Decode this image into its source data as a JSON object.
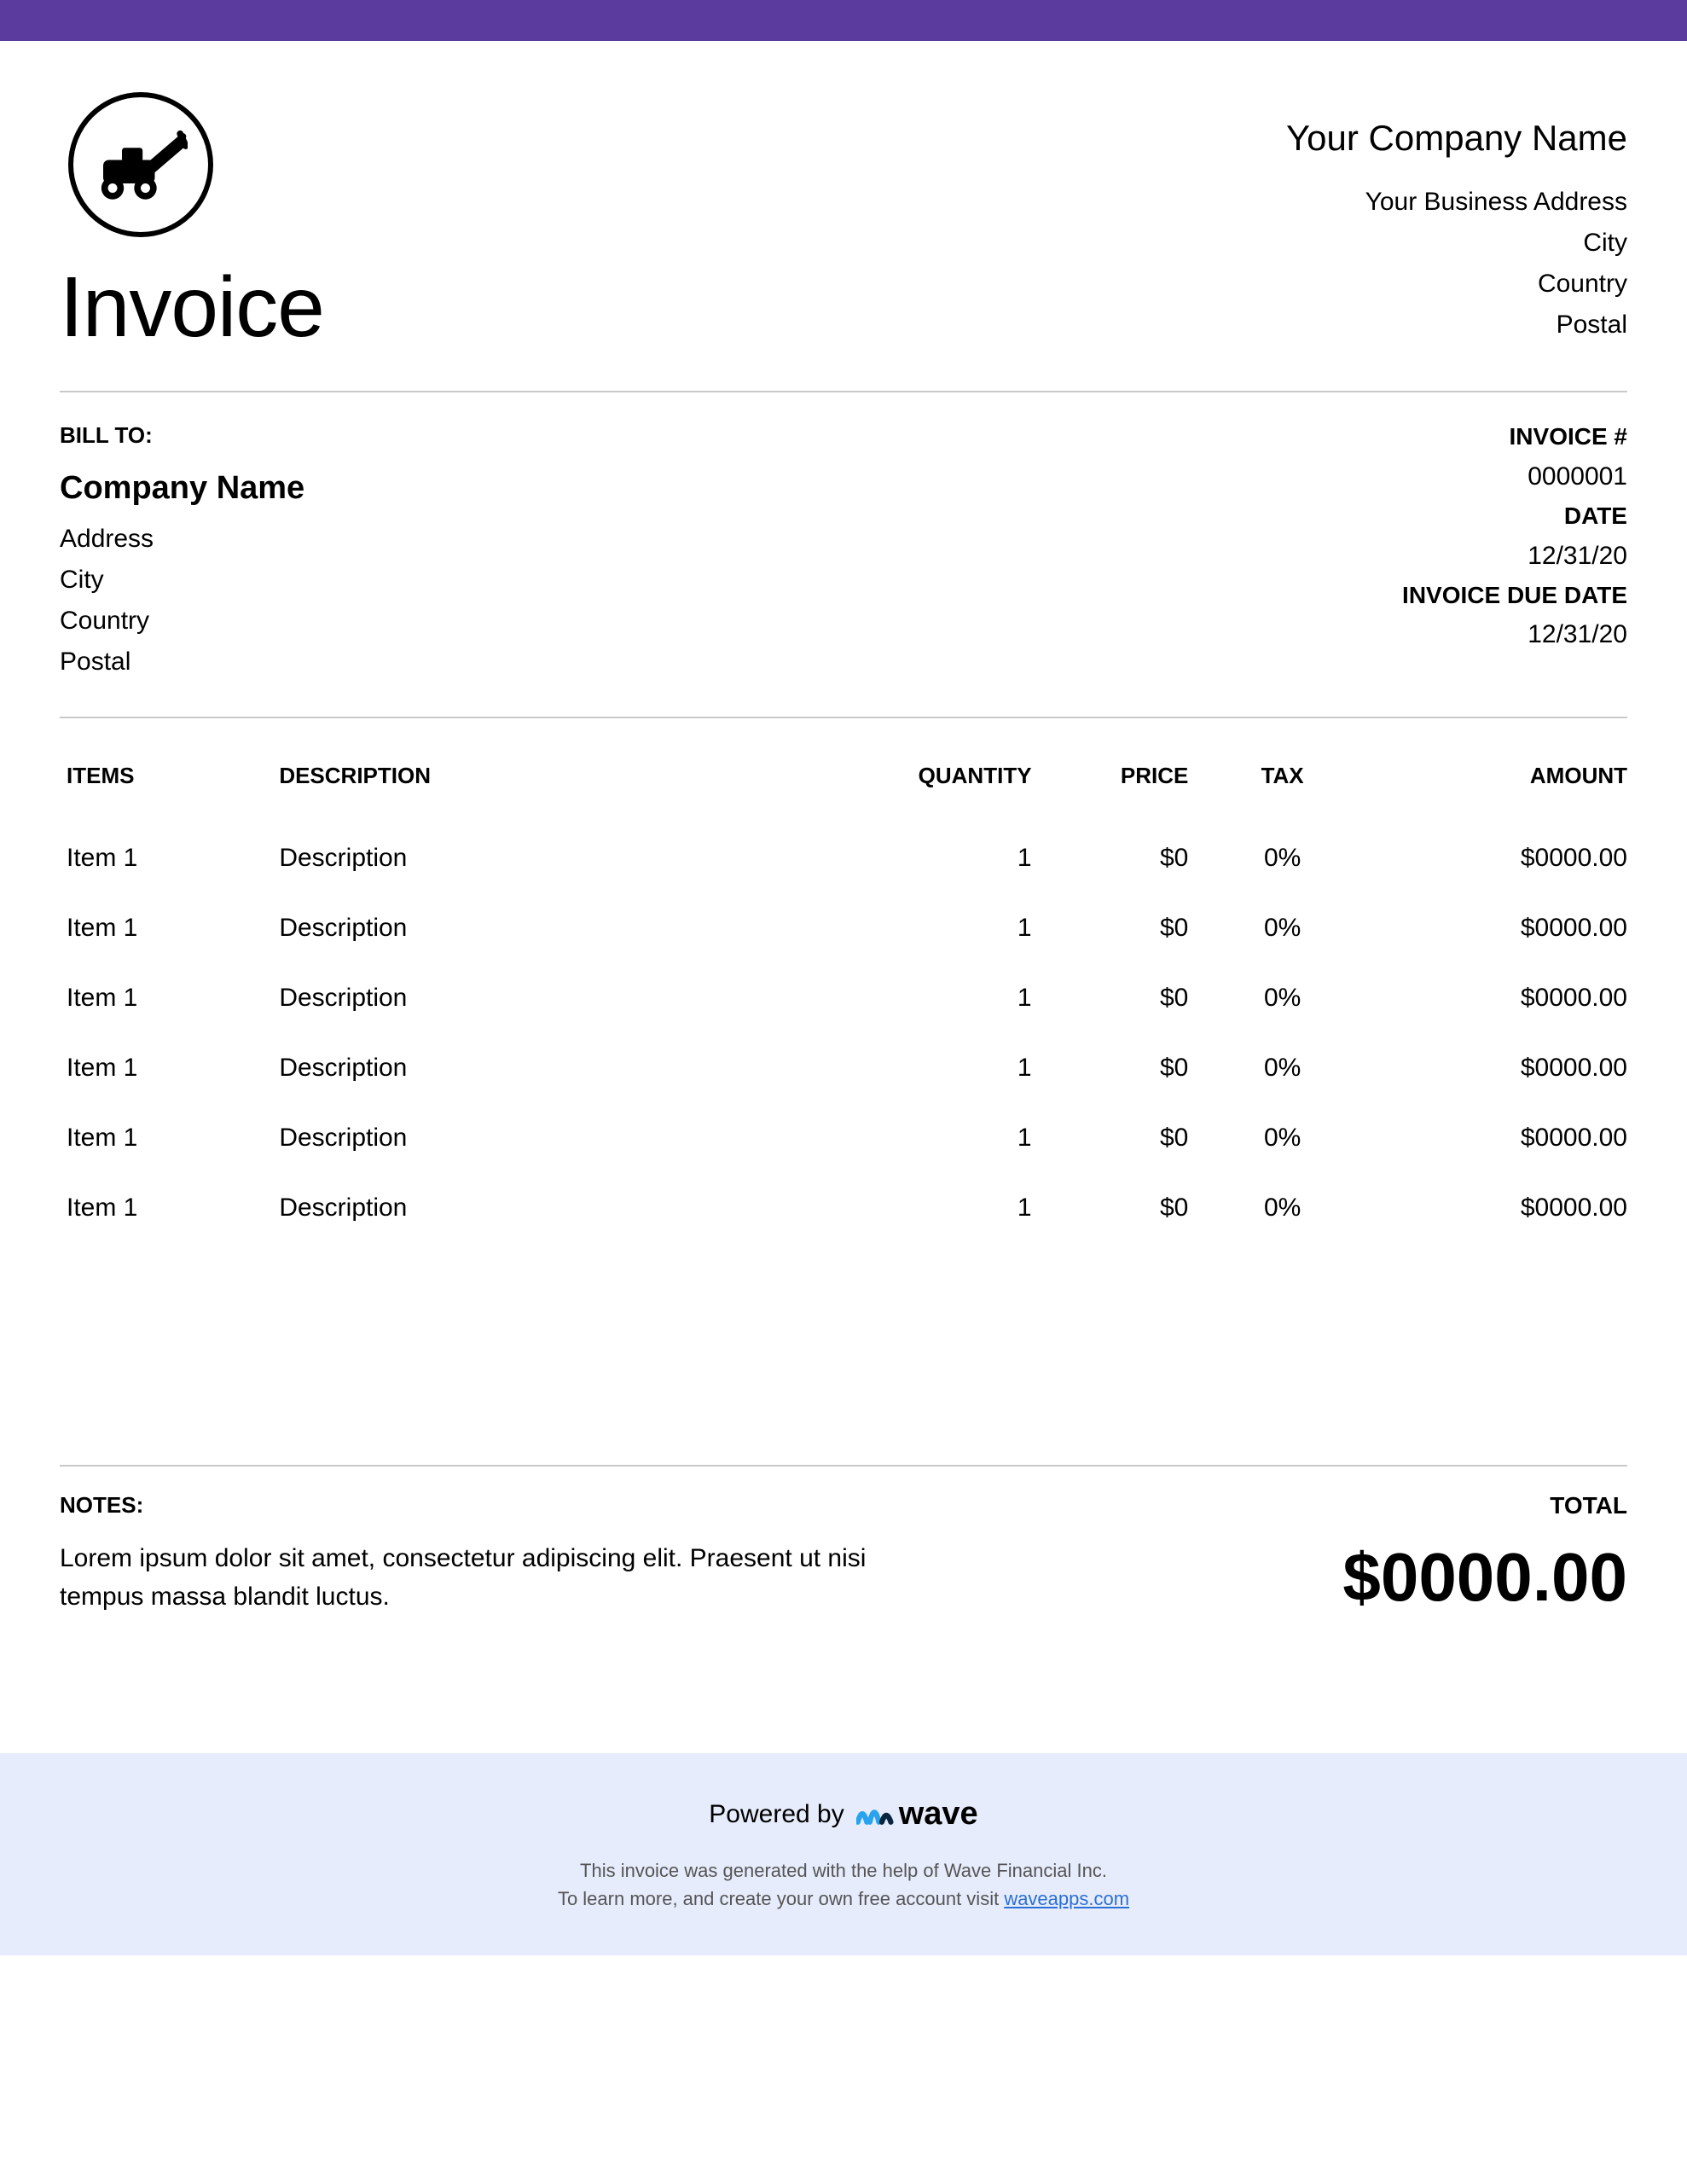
{
  "theme": {
    "top_bar_color": "#5b3b9e",
    "footer_bg": "#e6ecfb",
    "divider_color": "#c9c9c9",
    "link_color": "#2a6fd6"
  },
  "document": {
    "title": "Invoice"
  },
  "company": {
    "name": "Your Company Name",
    "address": "Your Business Address",
    "city": "City",
    "country": "Country",
    "postal": "Postal"
  },
  "bill_to": {
    "label": "BILL TO:",
    "name": "Company Name",
    "address": "Address",
    "city": "City",
    "country": "Country",
    "postal": "Postal"
  },
  "meta": {
    "invoice_number_label": "INVOICE #",
    "invoice_number": "0000001",
    "date_label": "DATE",
    "date": "12/31/20",
    "due_date_label": "INVOICE DUE DATE",
    "due_date": "12/31/20"
  },
  "columns": {
    "items": "ITEMS",
    "description": "DESCRIPTION",
    "quantity": "QUANTITY",
    "price": "PRICE",
    "tax": "TAX",
    "amount": "AMOUNT"
  },
  "rows": [
    {
      "item": "Item 1",
      "description": "Description",
      "quantity": "1",
      "price": "$0",
      "tax": "0%",
      "amount": "$0000.00"
    },
    {
      "item": "Item 1",
      "description": "Description",
      "quantity": "1",
      "price": "$0",
      "tax": "0%",
      "amount": "$0000.00"
    },
    {
      "item": "Item 1",
      "description": "Description",
      "quantity": "1",
      "price": "$0",
      "tax": "0%",
      "amount": "$0000.00"
    },
    {
      "item": "Item 1",
      "description": "Description",
      "quantity": "1",
      "price": "$0",
      "tax": "0%",
      "amount": "$0000.00"
    },
    {
      "item": "Item 1",
      "description": "Description",
      "quantity": "1",
      "price": "$0",
      "tax": "0%",
      "amount": "$0000.00"
    },
    {
      "item": "Item 1",
      "description": "Description",
      "quantity": "1",
      "price": "$0",
      "tax": "0%",
      "amount": "$0000.00"
    }
  ],
  "notes": {
    "label": "NOTES:",
    "body": "Lorem ipsum dolor sit amet, consectetur adipiscing elit. Praesent ut nisi tempus massa blandit luctus."
  },
  "totals": {
    "label": "TOTAL",
    "value": "$0000.00"
  },
  "footer": {
    "powered_by": "Powered by",
    "brand": "wave",
    "line1": "This invoice was generated with the help of Wave Financial Inc.",
    "line2_pre": "To learn more, and create your own free account visit ",
    "link_text": "waveapps.com"
  }
}
